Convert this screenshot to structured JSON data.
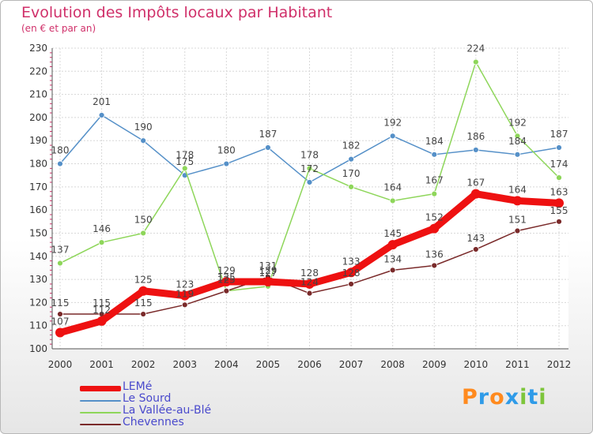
{
  "chart_data": {
    "type": "line",
    "title": "Evolution des Impôts locaux par Habitant",
    "subtitle": "(en € et par an)",
    "xlabel": "",
    "ylabel": "",
    "ylim": [
      100,
      230
    ],
    "ytick_step": 10,
    "grid": true,
    "legend_position": "bottom-left",
    "categories": [
      "2000",
      "2001",
      "2002",
      "2003",
      "2004",
      "2005",
      "2006",
      "2007",
      "2008",
      "2009",
      "2010",
      "2011",
      "2012"
    ],
    "series": [
      {
        "name": "LEMé",
        "color": "#ee1111",
        "values": [
          107,
          112,
          125,
          123,
          129,
          129,
          128,
          133,
          145,
          152,
          167,
          164,
          163
        ],
        "labels": [
          "107",
          "112",
          "125",
          "123",
          "129",
          "129",
          "128",
          "133",
          "145",
          "152",
          "167",
          "164",
          "163"
        ]
      },
      {
        "name": "Le Sourd",
        "color": "#5590c8",
        "values": [
          180,
          201,
          190,
          175,
          180,
          187,
          172,
          182,
          192,
          184,
          186,
          184,
          187
        ],
        "labels": [
          "180",
          "201",
          "190",
          "175",
          "180",
          "187",
          "172",
          "182",
          "192",
          "184",
          "186",
          "184",
          "187"
        ]
      },
      {
        "name": "La Vallée-au-Blé",
        "color": "#8ed65a",
        "values": [
          137,
          146,
          150,
          178,
          125,
          127,
          178,
          170,
          164,
          167,
          224,
          192,
          174
        ],
        "labels": [
          "137",
          "146",
          "150",
          "178",
          "125",
          "127",
          "178",
          "170",
          "164",
          "167",
          "224",
          "192",
          "174"
        ]
      },
      {
        "name": "Chevennes",
        "color": "#7a2a2a",
        "values": [
          115,
          115,
          115,
          119,
          125,
          131,
          124,
          128,
          134,
          136,
          143,
          151,
          155
        ],
        "labels": [
          "115",
          "115",
          "115",
          "119",
          "125",
          "131",
          "124",
          "128",
          "134",
          "136",
          "143",
          "151",
          "155"
        ]
      }
    ]
  },
  "logo": {
    "text": "Proxiti",
    "colors": [
      "#ff8a1e",
      "#2f9be8",
      "#ff8a1e",
      "#2f9be8",
      "#7dc53b",
      "#2f9be8",
      "#7dc53b"
    ]
  }
}
